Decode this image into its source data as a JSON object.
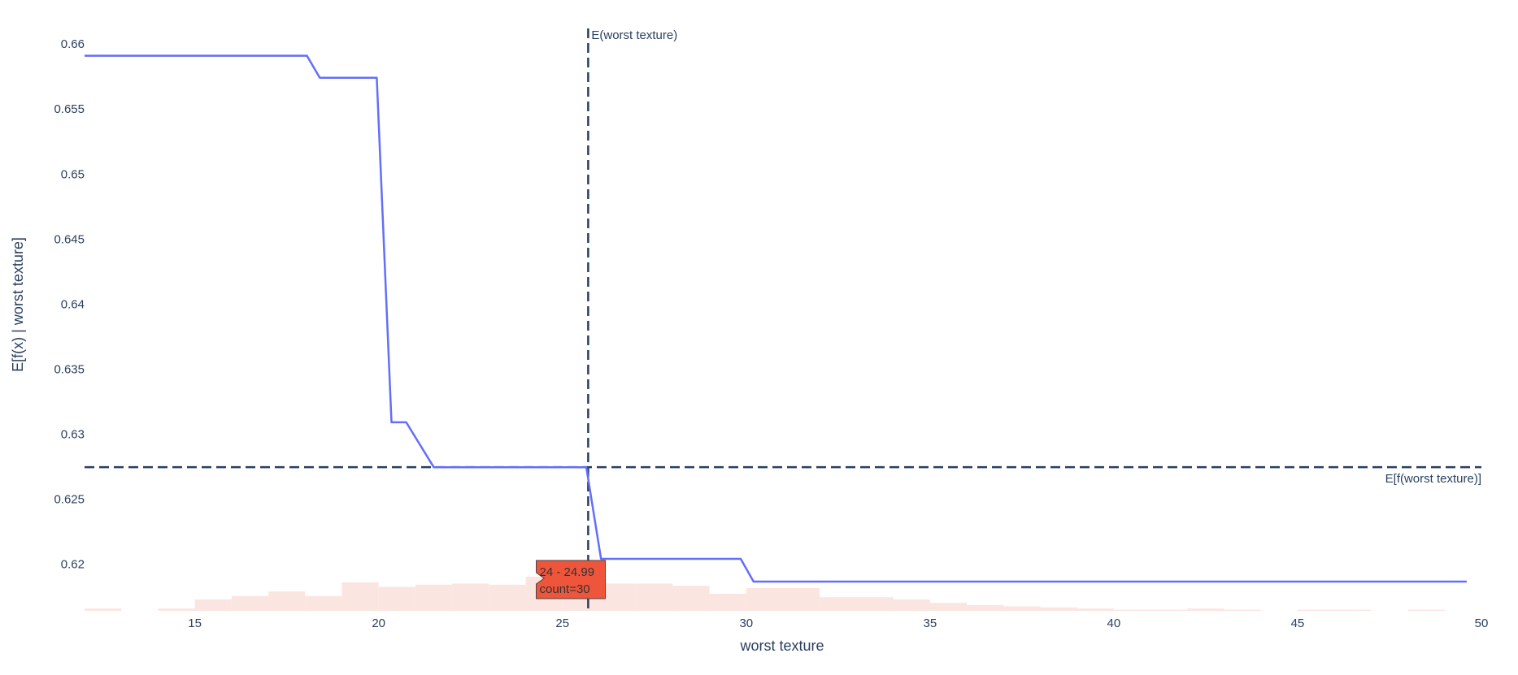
{
  "chart_data": {
    "type": "line",
    "title": "",
    "xlabel": "worst texture",
    "ylabel": "E[f(x) | worst texture]",
    "xlim": [
      12,
      50
    ],
    "ylim": [
      0.6164,
      0.6612
    ],
    "x_ticks": [
      15,
      20,
      25,
      30,
      35,
      40,
      45,
      50
    ],
    "y_ticks": [
      0.62,
      0.625,
      0.63,
      0.635,
      0.64,
      0.645,
      0.65,
      0.655,
      0.66
    ],
    "y_tick_labels": [
      "0.62",
      "0.625",
      "0.63",
      "0.635",
      "0.64",
      "0.645",
      "0.65",
      "0.655",
      "0.66"
    ],
    "grid": false,
    "line_color": "#636efa",
    "series": [
      {
        "x": [
          12.0,
          18.05,
          18.4,
          19.95,
          20.35,
          20.75,
          21.5,
          25.65,
          26.05,
          29.85,
          30.2,
          49.6
        ],
        "y": [
          0.6591,
          0.6591,
          0.6574,
          0.6574,
          0.6309,
          0.6309,
          0.62745,
          0.62745,
          0.6204,
          0.6204,
          0.61865,
          0.61865
        ]
      }
    ],
    "histogram": {
      "color": "#fbe5e0",
      "bin_width": 1,
      "bin_starts": [
        12,
        13,
        14,
        15,
        16,
        17,
        18,
        19,
        20,
        21,
        22,
        23,
        24,
        25,
        26,
        27,
        28,
        29,
        30,
        31,
        32,
        33,
        34,
        35,
        36,
        37,
        38,
        39,
        40,
        41,
        42,
        43,
        44,
        45,
        46,
        47,
        48,
        49
      ],
      "counts": [
        2,
        0,
        2,
        10,
        13,
        17,
        13,
        25,
        21,
        23,
        24,
        23,
        30,
        21,
        24,
        24,
        22,
        15,
        20,
        20,
        12,
        12,
        10,
        7,
        5,
        4,
        3,
        2,
        1,
        1,
        2,
        1,
        0,
        1,
        1,
        0,
        1,
        0
      ]
    },
    "reference_lines": [
      {
        "orientation": "vertical",
        "value": 25.7,
        "label": "E(worst texture)",
        "dash": "dash",
        "color": "#2a3f5f"
      },
      {
        "orientation": "horizontal",
        "value": 0.62745,
        "label": "E[f(worst texture)]",
        "dash": "dash",
        "color": "#2a3f5f"
      }
    ],
    "tooltip": {
      "bin_start": 24,
      "range": "24 - 24.99",
      "count": "count=30",
      "color": "#ef553b"
    }
  }
}
